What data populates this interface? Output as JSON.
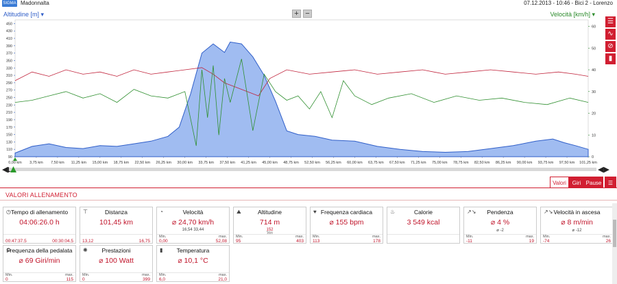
{
  "header": {
    "logo": "SIGMA",
    "title": "Madonnalta",
    "date": "07.12.2013",
    "time": "10:46",
    "bike": "Bici 2",
    "user": "Lorenzo",
    "sep": " - "
  },
  "chart": {
    "left_axis_title": "Altitudine [m]",
    "right_axis_title": "Velocità [km/h]",
    "zoom_in": "+",
    "zoom_out": "−",
    "side_buttons": [
      "list-icon",
      "curve-icon",
      "no-icon",
      "bars-icon"
    ],
    "side_glyphs": [
      "☰",
      "∿",
      "⊘",
      "▮"
    ]
  },
  "chart_data": {
    "type": "line",
    "x_unit": "km",
    "x_ticks": [
      "0,00 km",
      "3,75 km",
      "7,50 km",
      "11,25 km",
      "15,00 km",
      "18,75 km",
      "22,50 km",
      "26,25 km",
      "30,00 km",
      "33,75 km",
      "37,50 km",
      "41,25 km",
      "45,00 km",
      "48,75 km",
      "52,50 km",
      "56,25 km",
      "60,00 km",
      "63,75 km",
      "67,50 km",
      "71,25 km",
      "75,00 km",
      "78,75 km",
      "82,50 km",
      "86,25 km",
      "90,00 km",
      "93,75 km",
      "97,50 km",
      "101,25 km"
    ],
    "y_left_ticks": [
      90,
      110,
      130,
      150,
      170,
      190,
      210,
      230,
      250,
      270,
      290,
      310,
      330,
      350,
      370,
      390,
      410,
      430,
      450
    ],
    "y_right_ticks": [
      0,
      10,
      20,
      30,
      40,
      50,
      60
    ],
    "ylim_left": [
      90,
      460
    ],
    "ylim_right": [
      0,
      63
    ],
    "series": [
      {
        "axis": "left",
        "color": "#2f5ec8",
        "x": [
          0,
          3,
          6,
          9,
          12,
          15,
          18,
          21,
          24,
          27,
          29,
          31,
          33,
          35,
          37,
          38,
          40,
          42,
          44,
          46,
          48,
          50,
          53,
          56,
          60,
          64,
          68,
          72,
          76,
          80,
          84,
          88,
          92,
          95,
          97,
          99,
          101.25
        ],
        "y": [
          100,
          118,
          125,
          115,
          112,
          120,
          118,
          125,
          132,
          145,
          170,
          260,
          370,
          395,
          372,
          400,
          395,
          360,
          310,
          240,
          160,
          150,
          145,
          135,
          132,
          118,
          110,
          104,
          102,
          104,
          112,
          120,
          132,
          138,
          128,
          120,
          110
        ]
      },
      {
        "axis": "right",
        "color": "#c0223a",
        "x": [
          0,
          3,
          6,
          9,
          12,
          15,
          18,
          21,
          24,
          27,
          30,
          33,
          35,
          37,
          39,
          41,
          43,
          45,
          48,
          52,
          56,
          60,
          64,
          68,
          72,
          76,
          80,
          84,
          88,
          92,
          96,
          99,
          101.25
        ],
        "y": [
          35,
          39,
          37,
          40,
          38,
          39,
          37,
          40,
          38,
          39,
          40,
          41,
          38,
          34,
          32,
          30,
          28,
          36,
          40,
          38,
          39,
          40,
          38,
          39,
          40,
          38,
          39,
          40,
          39,
          38,
          39,
          38,
          37
        ]
      },
      {
        "axis": "right",
        "color": "#2f8f2f",
        "x": [
          0,
          3,
          6,
          9,
          12,
          15,
          18,
          21,
          24,
          27,
          30,
          32,
          33,
          34,
          35,
          36,
          37,
          38,
          40,
          42,
          44,
          46,
          48,
          50,
          52,
          54,
          56,
          58,
          60,
          63,
          66,
          70,
          74,
          78,
          82,
          86,
          90,
          94,
          98,
          101.25
        ],
        "y": [
          25,
          26,
          28,
          30,
          27,
          29,
          25,
          31,
          28,
          27,
          30,
          5,
          40,
          18,
          42,
          10,
          36,
          25,
          45,
          12,
          38,
          30,
          26,
          28,
          22,
          30,
          18,
          35,
          28,
          24,
          27,
          29,
          25,
          28,
          26,
          27,
          25,
          24,
          27,
          25
        ]
      }
    ]
  },
  "tabs": {
    "valori": "Valori",
    "giri": "Giri",
    "pause": "Pause",
    "list_glyph": "☰"
  },
  "section": {
    "title": "VALORI ALLENAMENTO"
  },
  "cards": [
    {
      "id": "tempo",
      "icon": "◷",
      "title": "Tempo di allenamento",
      "value": "04:06:26.0 h",
      "min_label": "",
      "min": "00:47:37.5",
      "max_label": "",
      "max": "00:30:04.5",
      "extra": ""
    },
    {
      "id": "distanza",
      "icon": "⊤",
      "title": "Distanza",
      "value": "101,45 km",
      "min_label": "",
      "min": "13,12",
      "max_label": "",
      "max": "16,75",
      "extra": ""
    },
    {
      "id": "velocita",
      "icon": "◔",
      "title": "Velocità",
      "value": "⌀ 24,70 km/h",
      "min_label": "Min.",
      "min": "0,00",
      "max_label": "max.",
      "max": "52,08",
      "extra": "16,54  33,44"
    },
    {
      "id": "altitudine",
      "icon": "⛰",
      "title": "Altitudine",
      "value": "714 m",
      "min_label": "Min.",
      "min": "95",
      "max_label": "max.",
      "max": "403",
      "extra": "701",
      "avg": "152"
    },
    {
      "id": "frequenza",
      "icon": "♥",
      "title": "Frequenza cardiaca",
      "value": "⌀ 155 bpm",
      "min_label": "Min.",
      "min": "113",
      "max_label": "max.",
      "max": "178",
      "extra": ""
    },
    {
      "id": "calorie",
      "icon": "♨",
      "title": "Calorie",
      "value": "3 549 kcal",
      "min_label": "",
      "min": "",
      "max_label": "",
      "max": "",
      "extra": ""
    },
    {
      "id": "pendenza",
      "icon": "↗↘",
      "title": "Pendenza",
      "value": "⌀ 4 %",
      "min_label": "Min.",
      "min": "-11",
      "max_label": "max.",
      "max": "19",
      "extra": "⌀ -2"
    },
    {
      "id": "ascesa",
      "icon": "↗↘",
      "title": "Velocità in ascesa",
      "value": "⌀ 8 m/min",
      "min_label": "Min.",
      "min": "-74",
      "max_label": "max.",
      "max": "26",
      "extra": "⌀ -12"
    },
    {
      "id": "pedalata",
      "icon": "⚙",
      "title": "Frequenza della pedalata",
      "value": "⌀ 69 Giri/min",
      "min_label": "Min.",
      "min": "0",
      "max_label": "max.",
      "max": "115",
      "extra": ""
    },
    {
      "id": "prestazioni",
      "icon": "✺",
      "title": "Prestazioni",
      "value": "⌀ 100 Watt",
      "min_label": "Min.",
      "min": "0",
      "max_label": "max.",
      "max": "399",
      "extra": ""
    },
    {
      "id": "temperatura",
      "icon": "▮",
      "title": "Temperatura",
      "value": "⌀ 10,1 °C",
      "min_label": "Min.",
      "min": "6,0",
      "max_label": "max.",
      "max": "21,0",
      "extra": ""
    }
  ]
}
